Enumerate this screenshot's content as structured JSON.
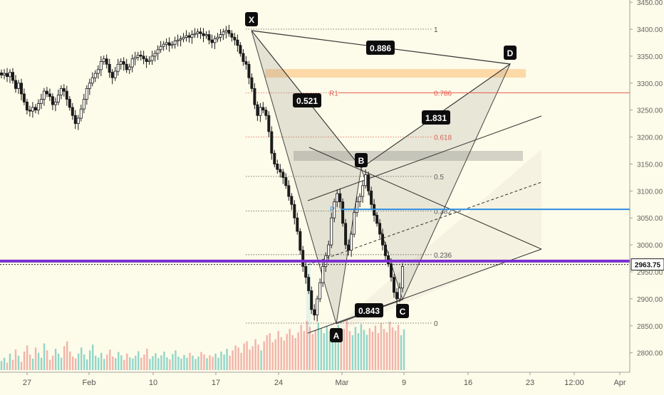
{
  "chart_data": {
    "type": "candlestick",
    "title": "",
    "xlabel": "",
    "ylabel": "",
    "ylim": [
      2760,
      3460
    ],
    "y_ticks": [
      2800,
      2850,
      2900,
      2950,
      3000,
      3050,
      3100,
      3150,
      3200,
      3250,
      3300,
      3350,
      3400,
      3450
    ],
    "y_tick_labels": [
      "2800.00",
      "2850.00",
      "2900.00",
      "2950.00",
      "3000.00",
      "3050.00",
      "3100.00",
      "3150.00",
      "3200.00",
      "3250.00",
      "3300.00",
      "3350.00",
      "3400.00",
      "3450.00"
    ],
    "x_tick_labels": [
      "27",
      "Feb",
      "10",
      "17",
      "24",
      "Mar",
      "9",
      "16",
      "23",
      "12:00",
      "Apr"
    ],
    "last_price": "2963.75",
    "last_price_value": 2963.75,
    "close_series": [
      3315,
      3318,
      3312,
      3320,
      3305,
      3290,
      3300,
      3280,
      3265,
      3250,
      3248,
      3255,
      3250,
      3262,
      3270,
      3285,
      3280,
      3275,
      3260,
      3265,
      3278,
      3290,
      3285,
      3270,
      3255,
      3240,
      3225,
      3235,
      3252,
      3270,
      3290,
      3300,
      3310,
      3318,
      3325,
      3340,
      3345,
      3335,
      3320,
      3310,
      3322,
      3335,
      3340,
      3335,
      3325,
      3330,
      3345,
      3348,
      3352,
      3350,
      3345,
      3340,
      3342,
      3350,
      3355,
      3362,
      3368,
      3372,
      3375,
      3370,
      3372,
      3378,
      3380,
      3382,
      3385,
      3388,
      3385,
      3390,
      3392,
      3395,
      3392,
      3388,
      3390,
      3380,
      3375,
      3382,
      3385,
      3390,
      3395,
      3398,
      3392,
      3385,
      3380,
      3370,
      3355,
      3340,
      3335,
      3310,
      3290,
      3260,
      3240,
      3255,
      3250,
      3240,
      3210,
      3170,
      3150,
      3140,
      3135,
      3125,
      3110,
      3090,
      3075,
      3050,
      3025,
      2990,
      2960,
      2940,
      2915,
      2880,
      2870,
      2900,
      2930,
      2960,
      2980,
      3000,
      3050,
      3080,
      3095,
      3080,
      3040,
      3000,
      2990,
      3020,
      3060,
      3080,
      3090,
      3110,
      3130,
      3100,
      3075,
      3055,
      3040,
      3020,
      3000,
      2980,
      2965,
      2940,
      2912,
      2900,
      2920,
      2960
    ],
    "volume_series": [
      22,
      30,
      18,
      40,
      25,
      50,
      35,
      20,
      45,
      60,
      38,
      28,
      55,
      42,
      30,
      65,
      48,
      25,
      35,
      52,
      40,
      30,
      58,
      70,
      45,
      33,
      28,
      40,
      55,
      38,
      26,
      48,
      62,
      35,
      30,
      42,
      27,
      38,
      50,
      33,
      29,
      44,
      36,
      25,
      40,
      31,
      28,
      35,
      46,
      30,
      38,
      52,
      27,
      34,
      41,
      29,
      36,
      45,
      31,
      26,
      39,
      48,
      33,
      28,
      37,
      30,
      42,
      35,
      27,
      33,
      44,
      38,
      29,
      36,
      32,
      40,
      30,
      45,
      38,
      52,
      35,
      48,
      60,
      55,
      42,
      65,
      70,
      50,
      58,
      75,
      62,
      48,
      70,
      85,
      90,
      68,
      75,
      95,
      80,
      72,
      88,
      100,
      85,
      78,
      92,
      110,
      95,
      120,
      105,
      88,
      98,
      115,
      102,
      90,
      108,
      95,
      82,
      96,
      110,
      88,
      100,
      120,
      95,
      85,
      105,
      90,
      112,
      98,
      86,
      102,
      94,
      108,
      90,
      115,
      100,
      92,
      118,
      104,
      96,
      110,
      85,
      99
    ],
    "volume_ylim": [
      0,
      260
    ],
    "fib_levels": [
      {
        "label": "1",
        "value": 3400
      },
      {
        "label": "0.786",
        "value": 3282
      },
      {
        "label": "0.618",
        "value": 3200
      },
      {
        "label": "0.5",
        "value": 3127
      },
      {
        "label": "0.382",
        "value": 3063
      },
      {
        "label": "0.236",
        "value": 2982
      },
      {
        "label": "0",
        "value": 2855
      }
    ],
    "pivots": [
      {
        "label": "R1",
        "value": 3282
      },
      {
        "label": "P",
        "value": 3067
      }
    ],
    "pattern_points": [
      {
        "label": "X",
        "value": 3400
      },
      {
        "label": "A",
        "value": 2855
      },
      {
        "label": "B",
        "value": 3140
      },
      {
        "label": "C",
        "value": 2895
      },
      {
        "label": "D",
        "value": 3338
      }
    ],
    "ratios": [
      {
        "label": "0.886"
      },
      {
        "label": "0.521"
      },
      {
        "label": "1.831"
      },
      {
        "label": "0.843"
      }
    ],
    "horizontal_lines": [
      2970,
      3066,
      3282
    ],
    "colors": {
      "background": "#fdfbe9",
      "up": "#ffffff",
      "down": "#1b1b1b",
      "volume_up": "#7fcfc4",
      "volume_down": "#f0a79f",
      "purple_line": "#7a2fd0",
      "blue_line": "#2f8ee0",
      "red_line": "#e55b4f",
      "orange_zone": "#fdd9a8",
      "label_bg": "#0d0d0d"
    }
  }
}
